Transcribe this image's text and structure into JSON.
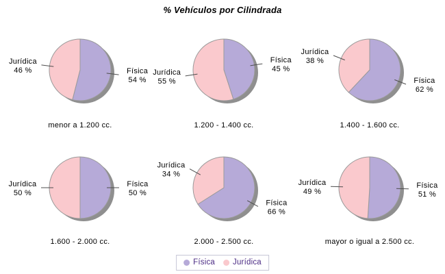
{
  "title": "% Vehículos por Cilindrada",
  "legend": {
    "items": [
      {
        "label": "Física",
        "color": "#b6aad8"
      },
      {
        "label": "Jurídica",
        "color": "#fac9cd"
      }
    ]
  },
  "colors": {
    "fisica": "#b6aad8",
    "juridica": "#fac9cd",
    "shadow": "#8f8f8f",
    "pie_outline": "#9a9a9a",
    "callout_line": "#4d4d4d",
    "label_text": "#000000",
    "legend_text": "#4b2b84",
    "legend_border": "#c6c6d6",
    "background": "#ffffff"
  },
  "chart_data": {
    "type": "pie",
    "title": "% Vehículos por Cilindrada",
    "series_labels": [
      "Física",
      "Jurídica"
    ],
    "legend_position": "bottom-center",
    "layout": "2 rows x 3 columns",
    "unit": "%",
    "charts": [
      {
        "category": "menor a 1.200 cc.",
        "fisica_pct": 54,
        "juridica_pct": 46
      },
      {
        "category": "1.200 - 1.400 cc.",
        "fisica_pct": 45,
        "juridica_pct": 55
      },
      {
        "category": "1.400 - 1.600 cc.",
        "fisica_pct": 62,
        "juridica_pct": 38
      },
      {
        "category": "1.600 - 2.000 cc.",
        "fisica_pct": 50,
        "juridica_pct": 50
      },
      {
        "category": "2.000 - 2.500 cc.",
        "fisica_pct": 66,
        "juridica_pct": 34
      },
      {
        "category": "mayor o igual a 2.500 cc.",
        "fisica_pct": 51,
        "juridica_pct": 49
      }
    ]
  }
}
